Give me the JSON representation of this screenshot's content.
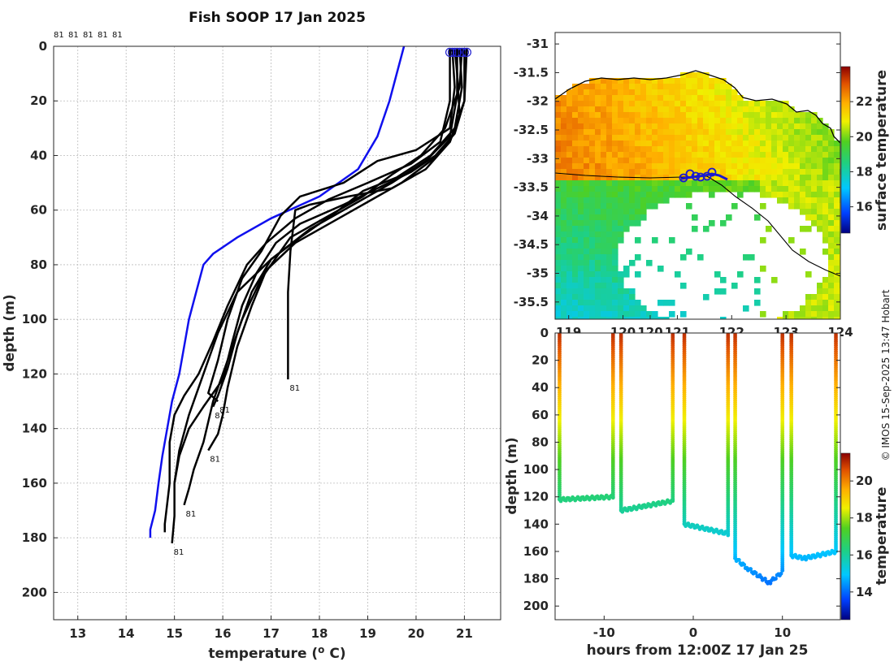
{
  "credit": "© IMOS 15-Sep-2025 13:47 Hobart",
  "chart_data": [
    {
      "type": "line",
      "title": "Fish SOOP 17 Jan 2025",
      "xlabel": "temperature (",
      "xlabel_sup": "o",
      "xlabel_tail": " C)",
      "ylabel": "depth (m)",
      "xlim": [
        12.5,
        21.75
      ],
      "ylim": [
        0,
        210
      ],
      "xticks": [
        13,
        14,
        15,
        16,
        17,
        18,
        19,
        20,
        21
      ],
      "yticks": [
        0,
        20,
        40,
        60,
        80,
        100,
        120,
        140,
        160,
        180,
        200
      ],
      "header_labels": [
        "81",
        "81",
        "81",
        "81",
        "81"
      ],
      "reference_profile": {
        "name": "climatology",
        "color": "#1010ee",
        "points": [
          [
            19.75,
            0
          ],
          [
            19.6,
            10
          ],
          [
            19.45,
            20
          ],
          [
            19.2,
            33
          ],
          [
            18.8,
            45
          ],
          [
            18.0,
            55
          ],
          [
            17.0,
            63
          ],
          [
            16.3,
            70
          ],
          [
            15.8,
            76
          ],
          [
            15.6,
            80
          ],
          [
            15.45,
            90
          ],
          [
            15.3,
            100
          ],
          [
            15.2,
            110
          ],
          [
            15.1,
            120
          ],
          [
            14.95,
            130
          ],
          [
            14.85,
            140
          ],
          [
            14.75,
            150
          ],
          [
            14.67,
            160
          ],
          [
            14.6,
            170
          ],
          [
            14.5,
            177
          ],
          [
            14.5,
            180
          ]
        ]
      },
      "series": [
        {
          "name": "profile 1",
          "end_label": "81",
          "points": [
            [
              20.8,
              1
            ],
            [
              20.85,
              10
            ],
            [
              20.9,
              25
            ],
            [
              20.7,
              35
            ],
            [
              20.2,
              45
            ],
            [
              19.5,
              52
            ],
            [
              18.6,
              55
            ],
            [
              17.8,
              58
            ],
            [
              17.5,
              60
            ],
            [
              17.4,
              75
            ],
            [
              17.35,
              90
            ],
            [
              17.35,
              110
            ],
            [
              17.35,
              120
            ],
            [
              17.35,
              122
            ]
          ]
        },
        {
          "name": "profile 2",
          "end_label": "81",
          "points": [
            [
              20.9,
              1
            ],
            [
              20.95,
              15
            ],
            [
              20.8,
              30
            ],
            [
              20.3,
              40
            ],
            [
              19.6,
              48
            ],
            [
              18.9,
              53
            ],
            [
              18.4,
              60
            ],
            [
              17.6,
              70
            ],
            [
              17.0,
              78
            ],
            [
              16.6,
              90
            ],
            [
              16.3,
              105
            ],
            [
              16.1,
              118
            ],
            [
              15.9,
              128
            ],
            [
              15.8,
              132
            ]
          ]
        },
        {
          "name": "profile 3",
          "end_label": "81",
          "points": [
            [
              20.75,
              1
            ],
            [
              20.8,
              15
            ],
            [
              20.7,
              30
            ],
            [
              20.0,
              38
            ],
            [
              19.2,
              42
            ],
            [
              18.5,
              50
            ],
            [
              17.6,
              55
            ],
            [
              17.2,
              62
            ],
            [
              16.8,
              75
            ],
            [
              16.4,
              85
            ],
            [
              16.1,
              100
            ],
            [
              15.9,
              115
            ],
            [
              15.7,
              127
            ],
            [
              15.9,
              130
            ]
          ]
        },
        {
          "name": "profile 4",
          "end_label": "81",
          "points": [
            [
              21.0,
              1
            ],
            [
              21.0,
              20
            ],
            [
              20.7,
              35
            ],
            [
              20.3,
              42
            ],
            [
              19.7,
              50
            ],
            [
              19.0,
              57
            ],
            [
              18.3,
              64
            ],
            [
              17.5,
              72
            ],
            [
              16.9,
              82
            ],
            [
              16.6,
              95
            ],
            [
              16.3,
              110
            ],
            [
              16.1,
              125
            ],
            [
              16.0,
              135
            ],
            [
              15.9,
              142
            ],
            [
              15.7,
              148
            ]
          ]
        },
        {
          "name": "profile 5",
          "end_label": "81",
          "points": [
            [
              20.95,
              1
            ],
            [
              20.9,
              15
            ],
            [
              20.6,
              30
            ],
            [
              20.1,
              40
            ],
            [
              19.5,
              47
            ],
            [
              18.9,
              55
            ],
            [
              18.2,
              62
            ],
            [
              17.4,
              70
            ],
            [
              16.8,
              85
            ],
            [
              16.4,
              100
            ],
            [
              16.1,
              115
            ],
            [
              15.8,
              130
            ],
            [
              15.6,
              145
            ],
            [
              15.4,
              155
            ],
            [
              15.3,
              162
            ],
            [
              15.2,
              168
            ]
          ]
        },
        {
          "name": "profile 6",
          "end_label": "81",
          "points": [
            [
              20.85,
              1
            ],
            [
              20.85,
              18
            ],
            [
              20.7,
              33
            ],
            [
              20.2,
              42
            ],
            [
              19.5,
              50
            ],
            [
              18.7,
              58
            ],
            [
              17.8,
              67
            ],
            [
              17.0,
              78
            ],
            [
              16.3,
              90
            ],
            [
              15.9,
              105
            ],
            [
              15.6,
              120
            ],
            [
              15.3,
              135
            ],
            [
              15.1,
              148
            ],
            [
              15.0,
              160
            ],
            [
              15.0,
              172
            ],
            [
              14.95,
              182
            ]
          ]
        },
        {
          "name": "profile 7",
          "end_label": "",
          "points": [
            [
              20.7,
              1
            ],
            [
              20.7,
              20
            ],
            [
              20.5,
              35
            ],
            [
              19.9,
              43
            ],
            [
              19.0,
              50
            ],
            [
              18.2,
              56
            ],
            [
              17.5,
              63
            ],
            [
              16.9,
              72
            ],
            [
              16.5,
              80
            ],
            [
              16.1,
              95
            ],
            [
              15.8,
              108
            ],
            [
              15.5,
              120
            ],
            [
              15.2,
              128
            ],
            [
              15.0,
              135
            ],
            [
              14.9,
              145
            ],
            [
              14.9,
              160
            ],
            [
              14.8,
              175
            ],
            [
              14.8,
              178
            ]
          ]
        },
        {
          "name": "profile 8",
          "end_label": "",
          "points": [
            [
              21.05,
              1
            ],
            [
              21.0,
              20
            ],
            [
              20.8,
              32
            ],
            [
              20.4,
              40
            ],
            [
              19.9,
              46
            ],
            [
              19.2,
              52
            ],
            [
              18.5,
              58
            ],
            [
              17.6,
              65
            ],
            [
              17.1,
              72
            ],
            [
              16.7,
              83
            ],
            [
              16.4,
              95
            ],
            [
              16.2,
              108
            ],
            [
              16.0,
              122
            ],
            [
              15.6,
              132
            ],
            [
              15.3,
              140
            ],
            [
              15.1,
              150
            ],
            [
              15.0,
              160
            ]
          ]
        }
      ]
    },
    {
      "type": "heatmap",
      "title": "",
      "xlabel": "",
      "ylabel": "",
      "xlim": [
        118.75,
        124.0
      ],
      "ylim": [
        -35.8,
        -30.8
      ],
      "xticks": [
        "119",
        "120",
        "120",
        "121",
        "122",
        "123",
        "124"
      ],
      "yticks": [
        -31,
        -31.5,
        -32,
        -32.5,
        -33,
        -33.5,
        -34,
        -34.5,
        -35,
        -35.5
      ],
      "colorbar_label": "surface temperature",
      "colorbar_range": [
        14.5,
        24
      ],
      "colorbar_ticks": [
        16,
        18,
        20,
        22
      ],
      "track_color": "#1a1ad0"
    },
    {
      "type": "scatter",
      "title": "",
      "xlabel": "hours from 12:00Z 17 Jan 25",
      "ylabel": "depth (m)",
      "xlim": [
        -15.5,
        16.5
      ],
      "ylim": [
        0,
        210
      ],
      "xticks": [
        -10,
        0,
        10
      ],
      "yticks": [
        0,
        20,
        40,
        60,
        80,
        100,
        120,
        140,
        160,
        180,
        200
      ],
      "colorbar_label": "temperature",
      "colorbar_range": [
        12.5,
        21.5
      ],
      "colorbar_ticks": [
        14,
        16,
        18,
        20
      ],
      "casts": [
        {
          "t0": -15,
          "bottom_t": [
            -15,
            -9
          ],
          "bottom_d": [
            122,
            120
          ]
        },
        {
          "t0": -9,
          "t1": -8,
          "bottom_t": [
            -8,
            -2.3
          ],
          "bottom_d": [
            130,
            123
          ]
        },
        {
          "t0": -2.3,
          "t1": -1,
          "bottom_t": [
            -1,
            3.8
          ],
          "bottom_d": [
            140,
            147
          ]
        },
        {
          "t0": 3.8,
          "t1": 4.8,
          "bottom_t": [
            4.8,
            10
          ],
          "bottom_d": [
            165,
            180
          ]
        },
        {
          "t0": 10,
          "t1": 11,
          "bottom_t": [
            11,
            16
          ],
          "bottom_d": [
            163,
            160
          ]
        }
      ]
    }
  ]
}
